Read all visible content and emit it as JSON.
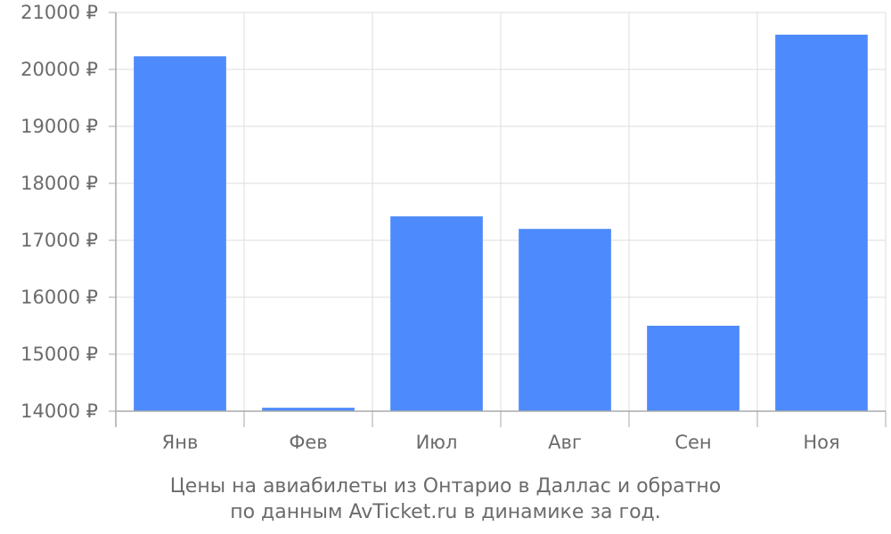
{
  "chart_data": {
    "type": "bar",
    "categories": [
      "Янв",
      "Фев",
      "Июл",
      "Авг",
      "Сен",
      "Ноя"
    ],
    "values": [
      20230,
      14060,
      17420,
      17200,
      15500,
      20610
    ],
    "ylim": [
      14000,
      21000
    ],
    "yticks": [
      14000,
      15000,
      16000,
      17000,
      18000,
      19000,
      20000,
      21000
    ],
    "ytick_suffix": " ₽",
    "grid": true,
    "bar_color": "#4d8afc"
  },
  "caption": {
    "line1": "Цены на авиабилеты из Онтарио в Даллас и обратно",
    "line2": "по данным AvTicket.ru в динамике за год."
  }
}
